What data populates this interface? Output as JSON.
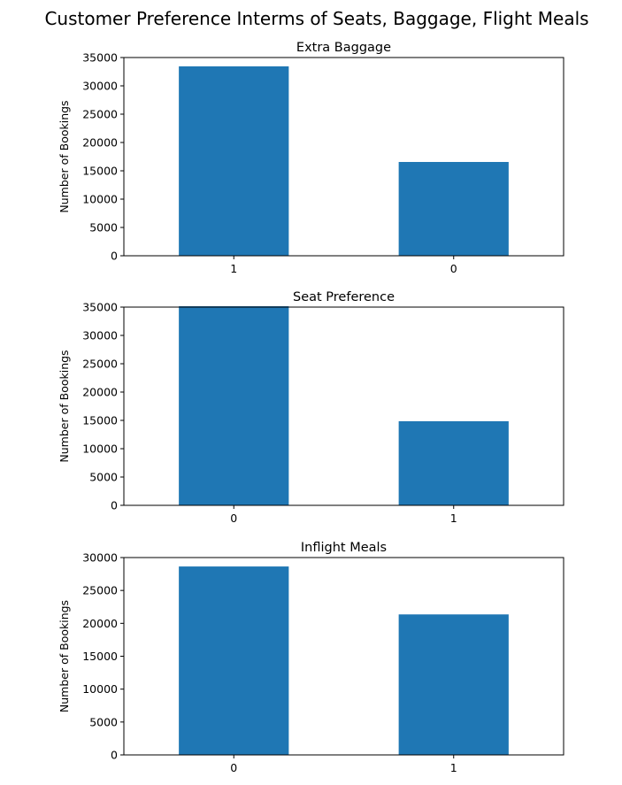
{
  "figure": {
    "title": "Customer Preference Interms of Seats, Baggage, Flight Meals",
    "bar_color": "#1f77b4"
  },
  "chart_data": [
    {
      "type": "bar",
      "title": "Extra Baggage",
      "xlabel": "",
      "ylabel": "Number of Bookings",
      "categories": [
        "1",
        "0"
      ],
      "values": [
        33439,
        16561
      ],
      "ylim": [
        0,
        35000
      ],
      "yticks": [
        0,
        5000,
        10000,
        15000,
        20000,
        25000,
        30000,
        35000
      ],
      "ytick_labels": [
        "0",
        "5000",
        "10000",
        "15000",
        "20000",
        "25000",
        "30000",
        "35000"
      ],
      "grid": false
    },
    {
      "type": "bar",
      "title": "Seat Preference",
      "xlabel": "",
      "ylabel": "Number of Bookings",
      "categories": [
        "0",
        "1"
      ],
      "values": [
        35152,
        14848
      ],
      "ylim": [
        0,
        35000
      ],
      "yticks": [
        0,
        5000,
        10000,
        15000,
        20000,
        25000,
        30000,
        35000
      ],
      "ytick_labels": [
        "0",
        "5000",
        "10000",
        "15000",
        "20000",
        "25000",
        "30000",
        "35000"
      ],
      "grid": false
    },
    {
      "type": "bar",
      "title": "Inflight Meals",
      "xlabel": "",
      "ylabel": "Number of Bookings",
      "categories": [
        "0",
        "1"
      ],
      "values": [
        28643,
        21357
      ],
      "ylim": [
        0,
        30000
      ],
      "yticks": [
        0,
        5000,
        10000,
        15000,
        20000,
        25000,
        30000
      ],
      "ytick_labels": [
        "0",
        "5000",
        "10000",
        "15000",
        "20000",
        "25000",
        "30000"
      ],
      "grid": false
    }
  ]
}
